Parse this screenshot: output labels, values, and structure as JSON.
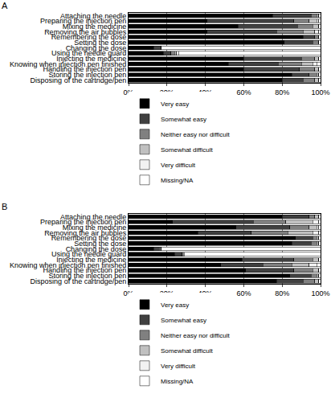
{
  "chart_data": [
    {
      "type": "bar",
      "title": "A",
      "orientation": "horizontal",
      "stacked": true,
      "grid": true,
      "legend": "bottom",
      "categories": [
        "Attaching the needle",
        "Preparing the injection pen",
        "Mixing the medicine",
        "Removing the air bubbles",
        "Remembering the dose",
        "Setting the dose",
        "Changing the dose",
        "Using the needle guard",
        "Injecting the medicine",
        "Knowing when injection pen finished",
        "Handling the injection pen",
        "Storing the injection pen",
        "Disposing of the cartridge/pen"
      ],
      "xlim": [
        0,
        100
      ],
      "xticks": [
        {
          "value": 0,
          "label": "0%"
        },
        {
          "value": 20,
          "label": "20%"
        },
        {
          "value": 40,
          "label": "40%"
        },
        {
          "value": 60,
          "label": "60%"
        },
        {
          "value": 80,
          "label": "80%"
        },
        {
          "value": 100,
          "label": "100%"
        }
      ],
      "series": [
        {
          "name": "Very easy",
          "color": "#000000",
          "values": [
            75,
            41,
            57,
            41,
            91,
            81,
            13,
            18,
            60,
            52,
            60,
            85,
            80
          ]
        },
        {
          "name": "Somewhat easy",
          "color": "#404040",
          "values": [
            20,
            45,
            31,
            36,
            6,
            15,
            4,
            4,
            30,
            26,
            29,
            9,
            11
          ]
        },
        {
          "name": "Neither easy nor difficult",
          "color": "#808080",
          "values": [
            3,
            8,
            8,
            14,
            2,
            3,
            0,
            2,
            7,
            12,
            8,
            4,
            6
          ]
        },
        {
          "name": "Somewhat difficult",
          "color": "#c0c0c0",
          "values": [
            1,
            4,
            3,
            6,
            0,
            0,
            0,
            1,
            2,
            6,
            2,
            1,
            2
          ]
        },
        {
          "name": "Very difficult",
          "color": "#f2f2f2",
          "values": [
            0,
            1,
            0,
            2,
            0,
            0,
            0,
            1,
            0,
            2,
            0,
            0,
            0
          ]
        },
        {
          "name": "Missing/NA",
          "color": "#ffffff",
          "values": [
            1,
            1,
            1,
            1,
            1,
            1,
            83,
            74,
            1,
            2,
            1,
            1,
            1
          ]
        }
      ]
    },
    {
      "type": "bar",
      "title": "B",
      "orientation": "horizontal",
      "stacked": true,
      "grid": true,
      "legend": "bottom",
      "categories": [
        "Attaching the needle",
        "Preparing the injection pen",
        "Mixing the medicine",
        "Removing the air bubbles",
        "Remembering the dose",
        "Setting the dose",
        "Changing the dose",
        "Using the needle guard",
        "Injecting the medicine",
        "Knowing when injection pen finished",
        "Handling the injection pen",
        "Storing the injection pen",
        "Disposing of the cartridge/pen"
      ],
      "xlim": [
        0,
        100
      ],
      "xticks": [
        {
          "value": 0,
          "label": "0%"
        },
        {
          "value": 20,
          "label": "20%"
        },
        {
          "value": 40,
          "label": "40%"
        },
        {
          "value": 60,
          "label": "60%"
        },
        {
          "value": 80,
          "label": "80%"
        },
        {
          "value": 100,
          "label": "100%"
        }
      ],
      "series": [
        {
          "name": "Very easy",
          "color": "#000000",
          "values": [
            80,
            23,
            56,
            36,
            87,
            85,
            13,
            24,
            59,
            48,
            61,
            84,
            77
          ]
        },
        {
          "name": "Somewhat easy",
          "color": "#404040",
          "values": [
            14,
            42,
            28,
            28,
            9,
            10,
            3,
            4,
            27,
            22,
            25,
            11,
            14
          ]
        },
        {
          "name": "Neither easy nor difficult",
          "color": "#808080",
          "values": [
            3,
            17,
            10,
            19,
            2,
            3,
            1,
            1,
            10,
            15,
            10,
            3,
            6
          ]
        },
        {
          "name": "Somewhat difficult",
          "color": "#c0c0c0",
          "values": [
            2,
            14,
            4,
            13,
            1,
            1,
            0,
            0,
            3,
            9,
            3,
            1,
            2
          ]
        },
        {
          "name": "Very difficult",
          "color": "#f2f2f2",
          "values": [
            0,
            3,
            1,
            3,
            0,
            0,
            0,
            0,
            0,
            4,
            0,
            0,
            0
          ]
        },
        {
          "name": "Missing/NA",
          "color": "#ffffff",
          "values": [
            1,
            1,
            1,
            1,
            1,
            1,
            83,
            71,
            1,
            2,
            1,
            1,
            1
          ]
        }
      ]
    }
  ]
}
